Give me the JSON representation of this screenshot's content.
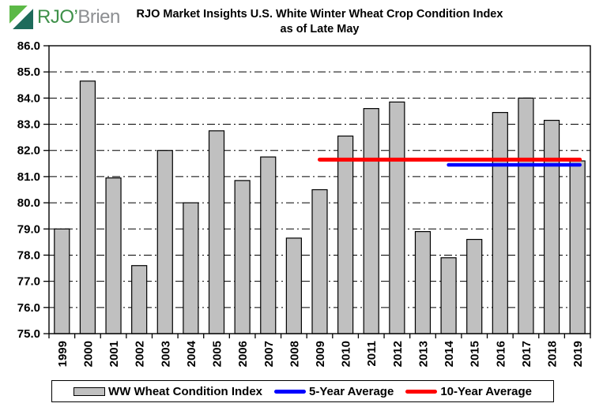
{
  "logo": {
    "rjo": "RJO",
    "apostrophe": "’",
    "brien": "Brien",
    "colors": {
      "icon_green": "#5CB947",
      "icon_teal": "#1E6B5B",
      "text_green": "#3E9049",
      "text_gray": "#8D8F92"
    }
  },
  "title": {
    "line1": "RJO Market Insights U.S. White Winter Wheat Crop Condition Index",
    "line2": "as of Late May"
  },
  "legend": {
    "bar_label": "WW Wheat Condition Index",
    "avg5_label": "5-Year Average",
    "avg10_label": "10-Year Average"
  },
  "chart_data": {
    "type": "bar",
    "title": "RJO Market Insights U.S. White Winter Wheat Crop Condition Index as of Late May",
    "categories": [
      "1999",
      "2000",
      "2001",
      "2002",
      "2003",
      "2004",
      "2005",
      "2006",
      "2007",
      "2008",
      "2009",
      "2010",
      "2011",
      "2012",
      "2013",
      "2014",
      "2015",
      "2016",
      "2017",
      "2018",
      "2019"
    ],
    "series": [
      {
        "name": "WW Wheat Condition Index",
        "type": "bar",
        "color": "#C0C0C0",
        "edge_color": "#000000",
        "values": [
          79.0,
          84.65,
          80.95,
          77.6,
          82.0,
          80.0,
          82.75,
          80.85,
          81.75,
          78.65,
          80.5,
          82.55,
          83.6,
          83.85,
          78.9,
          77.9,
          78.6,
          83.45,
          84.0,
          83.15,
          81.6
        ]
      },
      {
        "name": "5-Year Average",
        "type": "line",
        "color": "#0000FF",
        "value": 81.45,
        "from_year": "2014",
        "to_year": "2019",
        "stroke_width": 4.5
      },
      {
        "name": "10-Year Average",
        "type": "line",
        "color": "#FF0000",
        "value": 81.65,
        "from_year": "2009",
        "to_year": "2019",
        "stroke_width": 5
      }
    ],
    "xlabel": "",
    "ylabel": "",
    "ylim": [
      75.0,
      86.0
    ],
    "ytick_step": 1.0,
    "ytick_format": "one_decimal",
    "grid": "horizontal dash-dot",
    "legend_position": "bottom"
  }
}
